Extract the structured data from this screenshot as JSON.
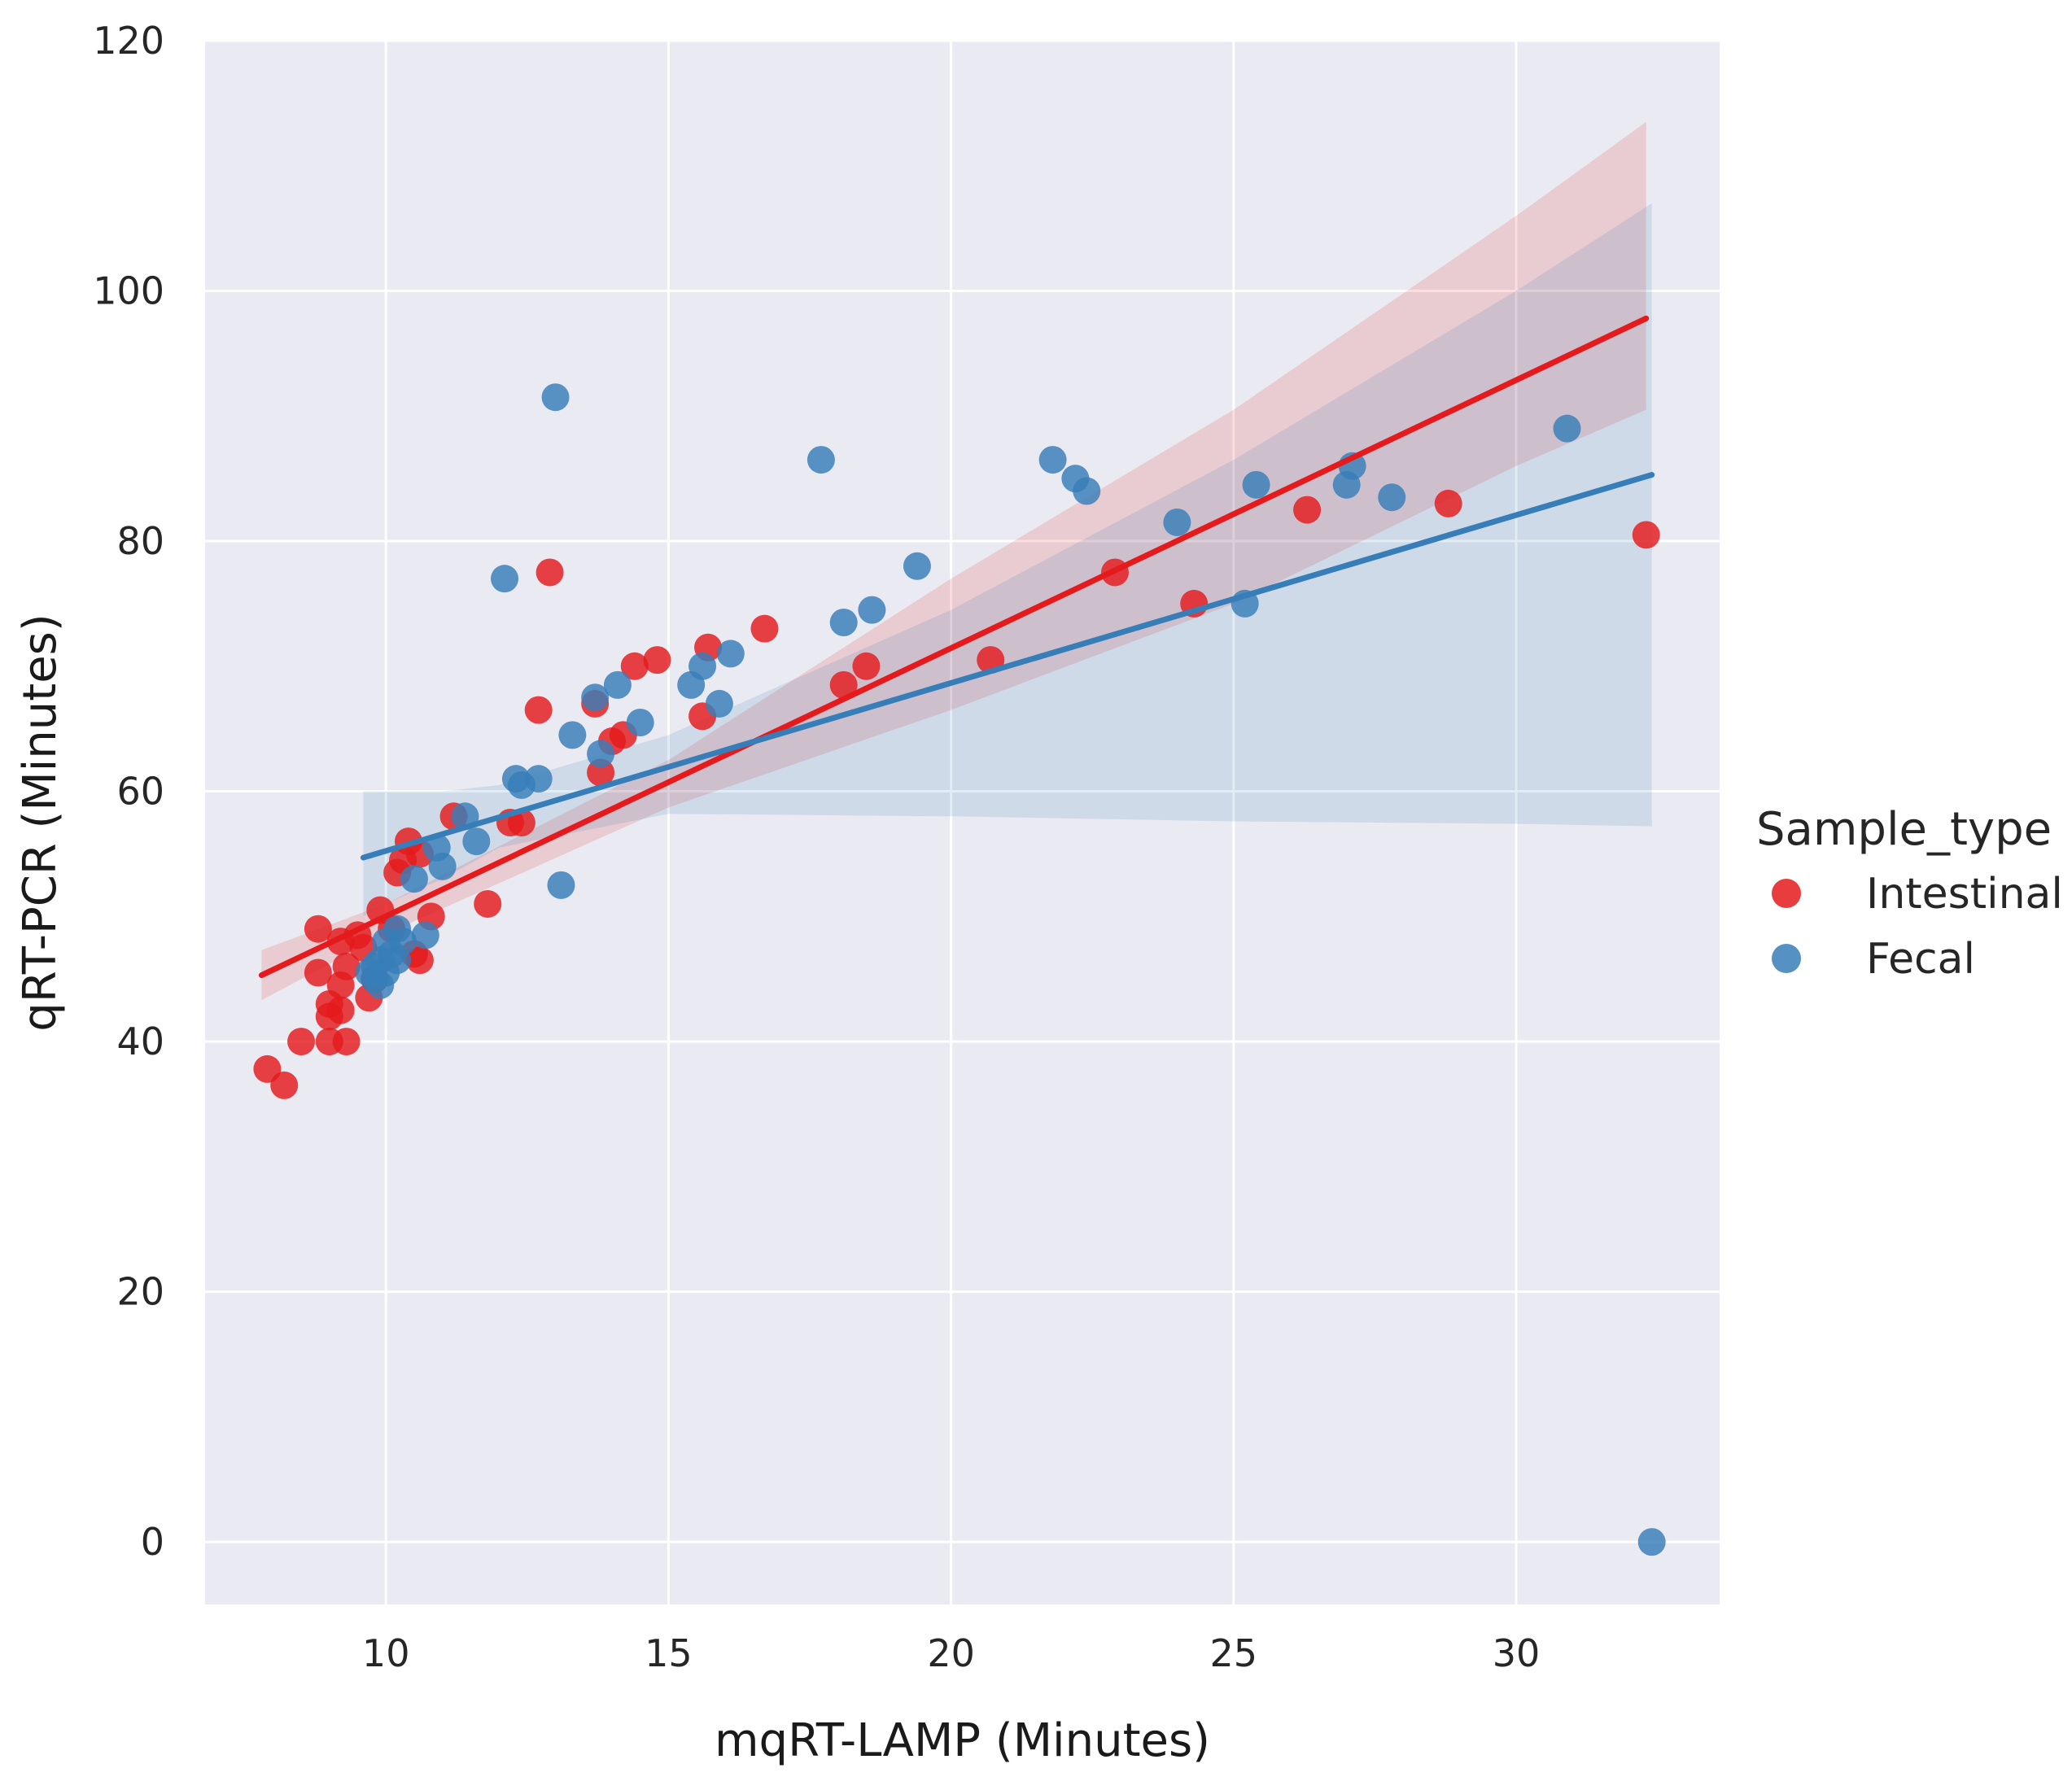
{
  "chart_data": {
    "type": "scatter",
    "title": "",
    "xlabel": "mqRT-LAMP (Minutes)",
    "ylabel": "qRT-PCR (Minutes)",
    "xlim": [
      6.8,
      33.6
    ],
    "ylim": [
      -5,
      120
    ],
    "xticks": [
      10,
      15,
      20,
      25,
      30
    ],
    "yticks": [
      0,
      20,
      40,
      60,
      80,
      100,
      120
    ],
    "grid": true,
    "legend": {
      "title": "Sample_type",
      "placement": "right"
    },
    "series": [
      {
        "name": "Intestinal",
        "color": "#e41a1c",
        "regression": {
          "x": [
            7.8,
            32.3
          ],
          "y": [
            45.3,
            97.8
          ]
        },
        "ci_band": {
          "x": [
            7.8,
            10,
            15,
            20,
            25,
            30,
            32.3
          ],
          "upper": [
            47.3,
            51.0,
            62.5,
            77.0,
            90.5,
            106.0,
            113.5
          ],
          "lower": [
            43.3,
            48.6,
            58.7,
            66.5,
            75.0,
            86.0,
            90.5
          ]
        },
        "points": [
          {
            "x": 7.9,
            "y": 37.8
          },
          {
            "x": 8.2,
            "y": 36.5
          },
          {
            "x": 8.5,
            "y": 40.0
          },
          {
            "x": 8.8,
            "y": 45.5
          },
          {
            "x": 8.8,
            "y": 49.0
          },
          {
            "x": 9.0,
            "y": 42.0
          },
          {
            "x": 9.0,
            "y": 43.0
          },
          {
            "x": 9.0,
            "y": 40.0
          },
          {
            "x": 9.2,
            "y": 44.5
          },
          {
            "x": 9.2,
            "y": 42.5
          },
          {
            "x": 9.2,
            "y": 48.0
          },
          {
            "x": 9.3,
            "y": 40.0
          },
          {
            "x": 9.3,
            "y": 46.0
          },
          {
            "x": 9.5,
            "y": 48.5
          },
          {
            "x": 9.6,
            "y": 47.5
          },
          {
            "x": 9.7,
            "y": 43.5
          },
          {
            "x": 9.8,
            "y": 45.0
          },
          {
            "x": 9.9,
            "y": 50.5
          },
          {
            "x": 10.1,
            "y": 49.0
          },
          {
            "x": 10.2,
            "y": 53.5
          },
          {
            "x": 10.3,
            "y": 54.5
          },
          {
            "x": 10.4,
            "y": 56.0
          },
          {
            "x": 10.5,
            "y": 47.0
          },
          {
            "x": 10.6,
            "y": 55.0
          },
          {
            "x": 10.6,
            "y": 46.5
          },
          {
            "x": 10.8,
            "y": 50.0
          },
          {
            "x": 11.2,
            "y": 58.0
          },
          {
            "x": 11.8,
            "y": 51.0
          },
          {
            "x": 12.2,
            "y": 57.5
          },
          {
            "x": 12.4,
            "y": 57.5
          },
          {
            "x": 12.7,
            "y": 66.5
          },
          {
            "x": 12.9,
            "y": 77.5
          },
          {
            "x": 13.7,
            "y": 67.0
          },
          {
            "x": 13.8,
            "y": 61.5
          },
          {
            "x": 14.0,
            "y": 64.0
          },
          {
            "x": 14.2,
            "y": 64.5
          },
          {
            "x": 14.4,
            "y": 70.0
          },
          {
            "x": 14.8,
            "y": 70.5
          },
          {
            "x": 15.6,
            "y": 66.0
          },
          {
            "x": 15.7,
            "y": 71.5
          },
          {
            "x": 16.7,
            "y": 73.0
          },
          {
            "x": 18.1,
            "y": 68.5
          },
          {
            "x": 18.5,
            "y": 70.0
          },
          {
            "x": 20.7,
            "y": 70.5
          },
          {
            "x": 22.9,
            "y": 77.5
          },
          {
            "x": 24.3,
            "y": 75.0
          },
          {
            "x": 26.3,
            "y": 82.5
          },
          {
            "x": 28.8,
            "y": 83.0
          },
          {
            "x": 32.3,
            "y": 80.5
          }
        ]
      },
      {
        "name": "Fecal",
        "color": "#377eb8",
        "regression": {
          "x": [
            9.6,
            32.4
          ],
          "y": [
            54.7,
            85.3
          ]
        },
        "ci_band": {
          "x": [
            9.6,
            10,
            11,
            12,
            15,
            20,
            25,
            30,
            32.4
          ],
          "upper": [
            60.0,
            60.0,
            60.0,
            60.5,
            64.5,
            74.5,
            86.5,
            100.0,
            107.0
          ],
          "lower": [
            50.0,
            51.0,
            53.0,
            55.5,
            58.2,
            58.0,
            57.6,
            57.4,
            57.2
          ]
        },
        "points": [
          {
            "x": 9.7,
            "y": 45.5
          },
          {
            "x": 9.8,
            "y": 45.0
          },
          {
            "x": 9.8,
            "y": 46.0
          },
          {
            "x": 9.9,
            "y": 44.5
          },
          {
            "x": 9.9,
            "y": 46.5
          },
          {
            "x": 10.0,
            "y": 45.5
          },
          {
            "x": 10.0,
            "y": 48.0
          },
          {
            "x": 10.1,
            "y": 47.0
          },
          {
            "x": 10.2,
            "y": 46.5
          },
          {
            "x": 10.2,
            "y": 49.0
          },
          {
            "x": 10.3,
            "y": 48.0
          },
          {
            "x": 10.5,
            "y": 53.0
          },
          {
            "x": 10.7,
            "y": 48.5
          },
          {
            "x": 10.9,
            "y": 55.5
          },
          {
            "x": 11.0,
            "y": 54.0
          },
          {
            "x": 11.4,
            "y": 58.0
          },
          {
            "x": 11.6,
            "y": 56.0
          },
          {
            "x": 12.1,
            "y": 77.0
          },
          {
            "x": 12.3,
            "y": 61.0
          },
          {
            "x": 12.4,
            "y": 60.5
          },
          {
            "x": 12.7,
            "y": 61.0
          },
          {
            "x": 13.0,
            "y": 91.5
          },
          {
            "x": 13.1,
            "y": 52.5
          },
          {
            "x": 13.3,
            "y": 64.5
          },
          {
            "x": 13.7,
            "y": 67.5
          },
          {
            "x": 13.8,
            "y": 63.0
          },
          {
            "x": 14.1,
            "y": 68.5
          },
          {
            "x": 14.5,
            "y": 65.5
          },
          {
            "x": 15.4,
            "y": 68.5
          },
          {
            "x": 15.6,
            "y": 70.0
          },
          {
            "x": 15.9,
            "y": 67.0
          },
          {
            "x": 16.1,
            "y": 71.0
          },
          {
            "x": 17.7,
            "y": 86.5
          },
          {
            "x": 18.1,
            "y": 73.5
          },
          {
            "x": 18.6,
            "y": 74.5
          },
          {
            "x": 19.4,
            "y": 78.0
          },
          {
            "x": 21.8,
            "y": 86.5
          },
          {
            "x": 22.2,
            "y": 85.0
          },
          {
            "x": 22.4,
            "y": 84.0
          },
          {
            "x": 24.0,
            "y": 81.5
          },
          {
            "x": 25.2,
            "y": 75.0
          },
          {
            "x": 25.4,
            "y": 84.5
          },
          {
            "x": 27.0,
            "y": 84.5
          },
          {
            "x": 27.1,
            "y": 86.0
          },
          {
            "x": 27.8,
            "y": 83.5
          },
          {
            "x": 30.9,
            "y": 89.0
          },
          {
            "x": 32.4,
            "y": 0.0
          }
        ]
      }
    ]
  }
}
